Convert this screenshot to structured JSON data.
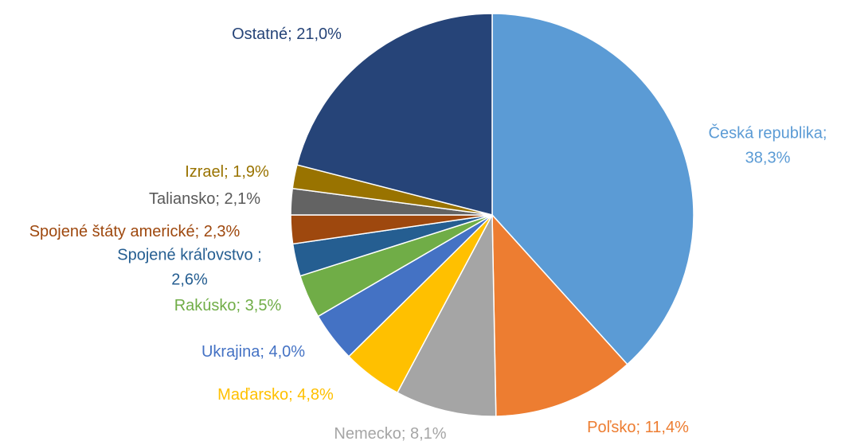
{
  "chart_data": {
    "type": "pie",
    "values": [
      38.3,
      11.4,
      8.1,
      4.8,
      4.0,
      3.5,
      2.6,
      2.3,
      2.1,
      1.9,
      21.0
    ],
    "value_labels": [
      "Česká republika;\n38,3%",
      "Poľsko; 11,4%",
      "Nemecko; 8,1%",
      "Maďarsko; 4,8%",
      "Ukrajina; 4,0%",
      "Rakúsko; 3,5%",
      "Spojené kráľovstvo ;\n2,6%",
      "Spojené štáty americké; 2,3%",
      "Taliansko; 2,1%",
      "Izrael; 1,9%",
      "Ostatné; 21,0%"
    ],
    "colors": [
      "#5B9BD5",
      "#ED7D31",
      "#A5A5A5",
      "#FFC000",
      "#4472C4",
      "#70AD47",
      "#255E91",
      "#9E480E",
      "#636363",
      "#997300",
      "#264478"
    ]
  }
}
